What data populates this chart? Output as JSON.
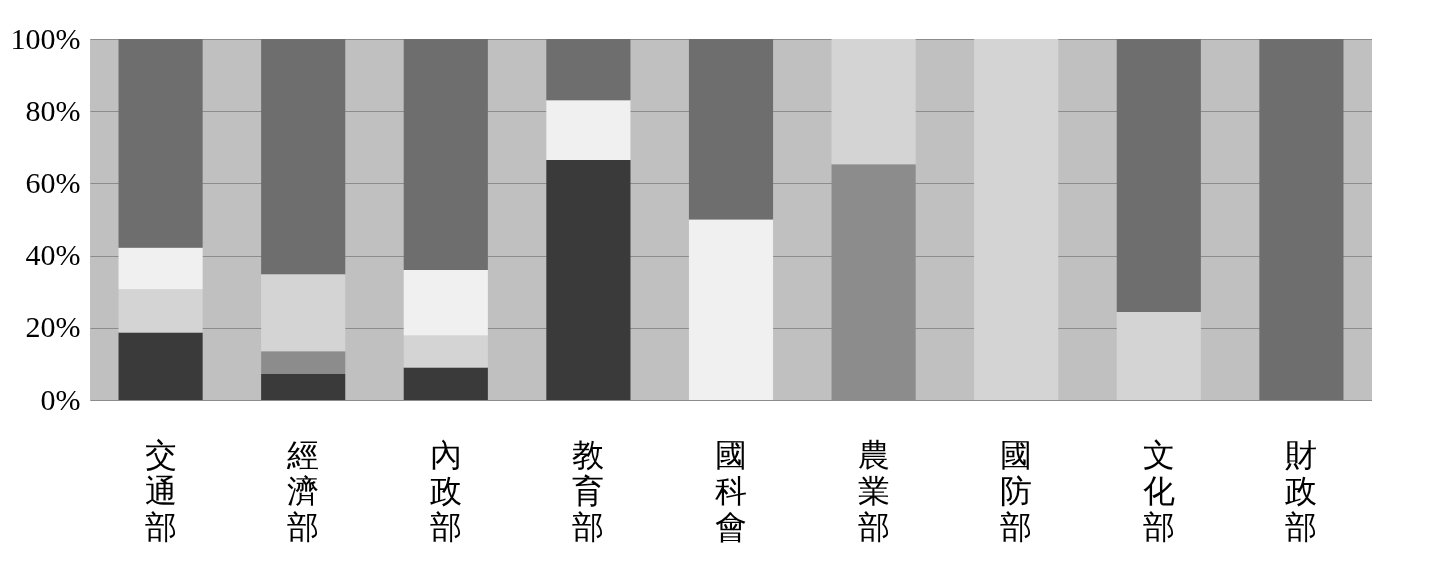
{
  "chart_data": {
    "type": "bar",
    "stacked": true,
    "categories": [
      "交通部",
      "經濟部",
      "內政部",
      "教育部",
      "國科會",
      "農業部",
      "國防部",
      "文化部",
      "財政部"
    ],
    "series": [
      {
        "color": "#3a3a3a",
        "values": [
          18.7,
          7.2,
          9.0,
          66.5,
          0,
          0,
          0,
          0,
          0
        ]
      },
      {
        "color": "#8c8c8c",
        "values": [
          0,
          6.3,
          0,
          0,
          0,
          65.3,
          0,
          0,
          0
        ]
      },
      {
        "color": "#d4d4d4",
        "values": [
          12.0,
          21.3,
          8.9,
          0,
          0,
          34.7,
          100,
          24.4,
          0
        ]
      },
      {
        "color": "#f0f0f0",
        "values": [
          11.5,
          0,
          18.1,
          16.5,
          50,
          0,
          0,
          0,
          0
        ]
      },
      {
        "color": "#6e6e6e",
        "values": [
          57.8,
          65.2,
          64.0,
          17.0,
          50,
          0,
          0,
          75.6,
          100
        ]
      }
    ],
    "ylim": [
      0,
      100
    ],
    "yticks": [
      {
        "value": 0,
        "label": "0%"
      },
      {
        "value": 20,
        "label": "20%"
      },
      {
        "value": 40,
        "label": "40%"
      },
      {
        "value": 60,
        "label": "60%"
      },
      {
        "value": 80,
        "label": "80%"
      },
      {
        "value": 100,
        "label": "100%"
      }
    ],
    "grid": "y"
  }
}
